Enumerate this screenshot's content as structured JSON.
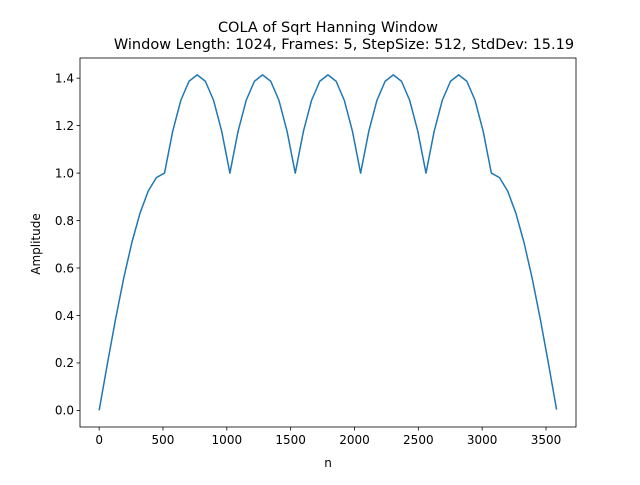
{
  "chart_data": {
    "type": "line",
    "title": "COLA of Sqrt Hanning Window",
    "subtitle": "Window Length: 1024, Frames: 5, StepSize: 512, StdDev: 15.19",
    "xlabel": "n",
    "ylabel": "Amplitude",
    "xlim": [
      -150,
      3735
    ],
    "ylim": [
      -0.07,
      1.485
    ],
    "xticks": [
      0,
      500,
      1000,
      1500,
      2000,
      2500,
      3000,
      3500
    ],
    "yticks": [
      0.0,
      0.2,
      0.4,
      0.6,
      0.8,
      1.0,
      1.2,
      1.4
    ],
    "xtick_labels": [
      "0",
      "500",
      "1000",
      "1500",
      "2000",
      "2500",
      "3000",
      "3500"
    ],
    "ytick_labels": [
      "0.0",
      "0.2",
      "0.4",
      "0.6",
      "0.8",
      "1.0",
      "1.2",
      "1.4"
    ],
    "grid": false,
    "series": [
      {
        "color": "#1f77b4",
        "x": [
          0,
          64,
          128,
          192,
          256,
          320,
          384,
          448,
          512,
          576,
          640,
          704,
          768,
          832,
          896,
          960,
          1024,
          1088,
          1152,
          1216,
          1280,
          1344,
          1408,
          1472,
          1536,
          1600,
          1664,
          1728,
          1792,
          1856,
          1920,
          1984,
          2048,
          2112,
          2176,
          2240,
          2304,
          2368,
          2432,
          2496,
          2560,
          2624,
          2688,
          2752,
          2816,
          2880,
          2944,
          3008,
          3072,
          3136,
          3200,
          3264,
          3328,
          3392,
          3456,
          3520,
          3583
        ],
        "y": [
          0.0,
          0.195,
          0.383,
          0.556,
          0.707,
          0.831,
          0.924,
          0.981,
          1.0,
          1.176,
          1.307,
          1.387,
          1.414,
          1.387,
          1.307,
          1.176,
          1.0,
          1.176,
          1.307,
          1.387,
          1.414,
          1.387,
          1.307,
          1.176,
          1.0,
          1.176,
          1.307,
          1.387,
          1.414,
          1.387,
          1.307,
          1.176,
          1.0,
          1.176,
          1.307,
          1.387,
          1.414,
          1.387,
          1.307,
          1.176,
          1.0,
          1.176,
          1.307,
          1.387,
          1.414,
          1.387,
          1.307,
          1.176,
          1.0,
          0.981,
          0.924,
          0.831,
          0.707,
          0.556,
          0.383,
          0.195,
          0.003
        ]
      }
    ]
  }
}
